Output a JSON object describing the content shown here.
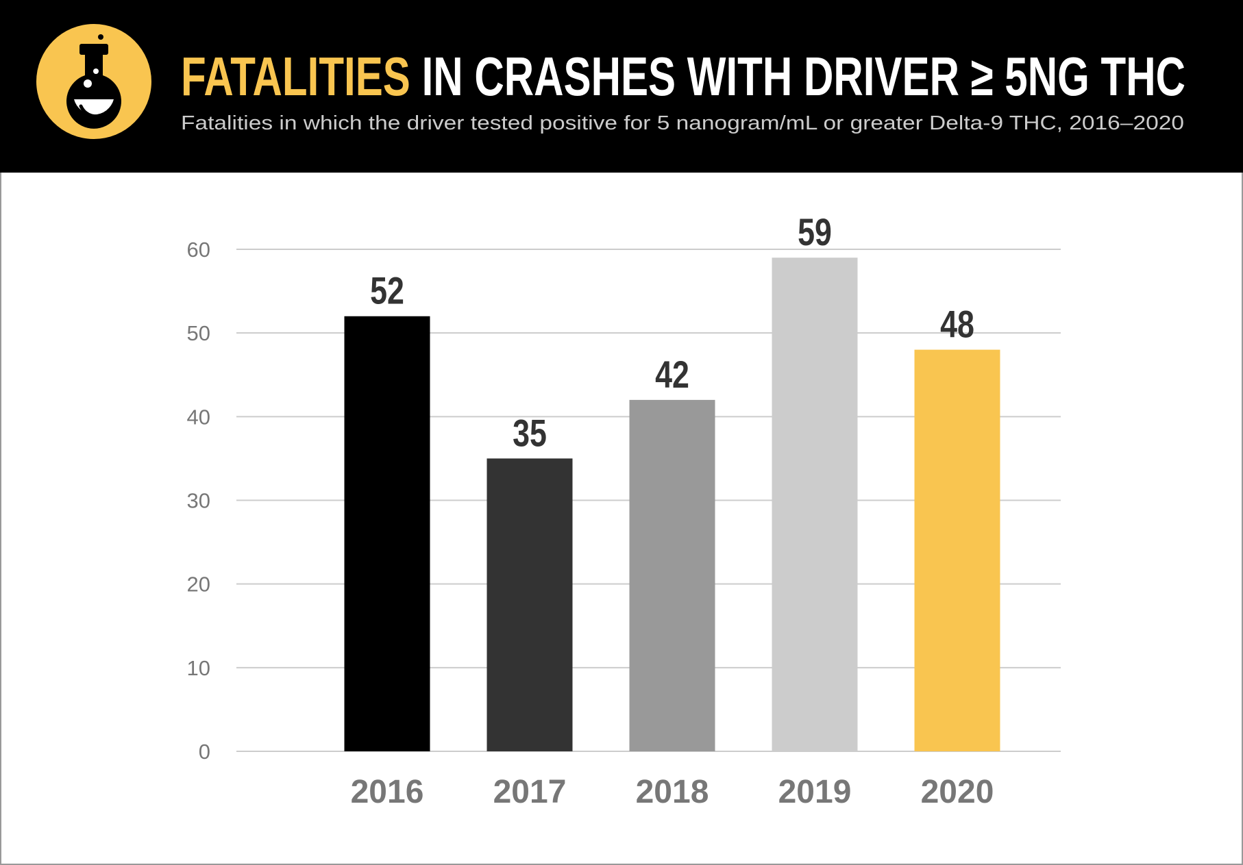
{
  "chart_data": {
    "type": "bar",
    "title": [
      "FATALITIES",
      "IN CRASHES WITH DRIVER ≥ 5NG THC"
    ],
    "subtitle": "Fatalities in which the driver tested positive for 5 nanogram/mL or greater Delta-9 THC, 2016–2020",
    "categories": [
      "2016",
      "2017",
      "2018",
      "2019",
      "2020"
    ],
    "values": [
      52,
      35,
      42,
      59,
      48
    ],
    "colors": [
      "#000000",
      "#333333",
      "#999999",
      "#cccccc",
      "#f9c550"
    ],
    "title_colors": [
      "#f9c550",
      "#ffffff"
    ],
    "ylim": [
      0,
      60
    ],
    "yticks": [
      0,
      10,
      20,
      30,
      40,
      50,
      60
    ],
    "grid": true
  }
}
